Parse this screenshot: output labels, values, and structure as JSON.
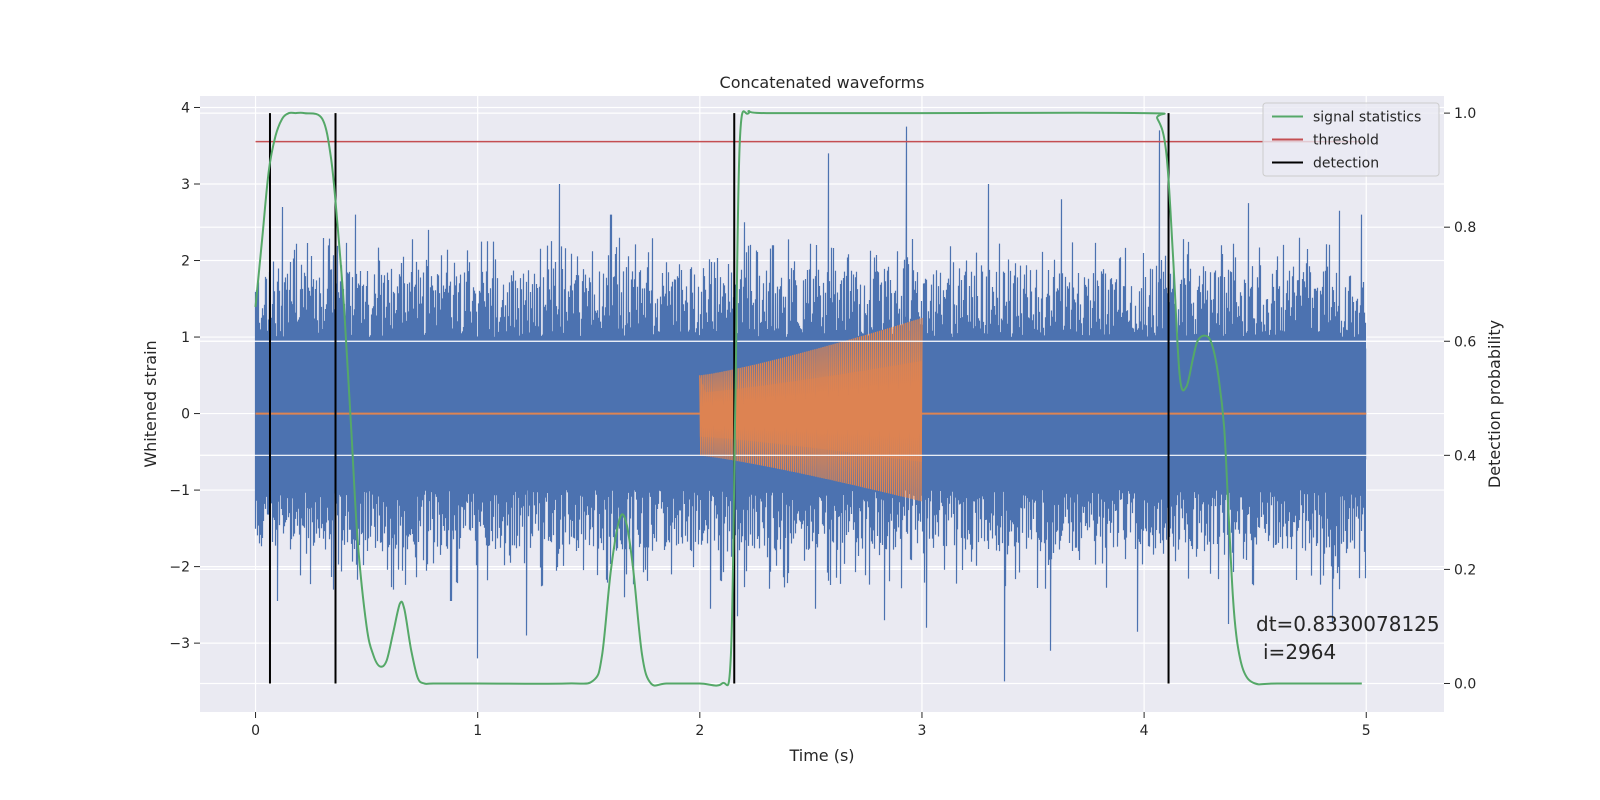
{
  "chart_data": {
    "type": "line",
    "title": "Concatenated waveforms",
    "xlabel": "Time (s)",
    "ylabel": "Whitened strain",
    "ylabel_right": "Detection probability",
    "xlim": [
      -0.25,
      5.35
    ],
    "ylim": [
      -3.9,
      4.15
    ],
    "ylim_right": [
      -0.05,
      1.03
    ],
    "x_ticks": [
      0,
      1,
      2,
      3,
      4,
      5
    ],
    "x_tick_labels": [
      "0",
      "1",
      "2",
      "3",
      "4",
      "5"
    ],
    "y_ticks": [
      -3,
      -2,
      -1,
      0,
      1,
      2,
      3,
      4
    ],
    "y_tick_labels": [
      "−3",
      "−2",
      "−1",
      "0",
      "1",
      "2",
      "3",
      "4"
    ],
    "y_right_ticks": [
      0.0,
      0.2,
      0.4,
      0.6,
      0.8,
      1.0
    ],
    "y_right_tick_labels": [
      "0.0",
      "0.2",
      "0.4",
      "0.6",
      "0.8",
      "1.0"
    ],
    "grid": true,
    "legend_position": "top-right",
    "series": [
      {
        "key": "strain",
        "color": "#4c72b0",
        "axis": "left",
        "noise_band": [
          -0.6,
          0.85
        ],
        "x_range": [
          0,
          5
        ],
        "peaks_high": [
          [
            0.12,
            2.7
          ],
          [
            0.45,
            2.6
          ],
          [
            0.78,
            2.4
          ],
          [
            1.37,
            3.0
          ],
          [
            1.6,
            2.6
          ],
          [
            2.2,
            2.5
          ],
          [
            2.33,
            2.2
          ],
          [
            2.58,
            3.4
          ],
          [
            2.93,
            3.75
          ],
          [
            3.3,
            3.0
          ],
          [
            3.63,
            2.8
          ],
          [
            4.07,
            3.7
          ],
          [
            4.47,
            2.75
          ],
          [
            4.88,
            2.65
          ],
          [
            4.98,
            2.6
          ]
        ],
        "peaks_low": [
          [
            0.1,
            -2.45
          ],
          [
            0.35,
            -2.3
          ],
          [
            0.62,
            -2.3
          ],
          [
            0.88,
            -2.45
          ],
          [
            1.0,
            -3.2
          ],
          [
            1.22,
            -2.9
          ],
          [
            1.66,
            -2.4
          ],
          [
            2.05,
            -2.55
          ],
          [
            2.17,
            -2.65
          ],
          [
            2.52,
            -2.55
          ],
          [
            2.83,
            -2.7
          ],
          [
            3.02,
            -2.8
          ],
          [
            3.37,
            -3.5
          ],
          [
            3.58,
            -3.1
          ],
          [
            3.97,
            -2.85
          ],
          [
            4.38,
            -2.75
          ],
          [
            4.85,
            -2.75
          ],
          [
            4.97,
            -2.15
          ]
        ]
      },
      {
        "key": "injection",
        "color": "#dd8452",
        "axis": "left",
        "x": [
          0,
          2.0,
          2.0,
          3.0,
          3.0,
          5.0
        ],
        "envelope_upper": [
          0,
          0.5,
          0.5,
          1.25,
          0,
          0
        ],
        "envelope_lower": [
          0,
          -0.55,
          -0.55,
          -1.15,
          0,
          0
        ],
        "chirp_start": 2.0,
        "chirp_end": 3.0
      },
      {
        "key": "signal_statistics",
        "name": "signal statistics",
        "color": "#55a868",
        "axis": "right",
        "x": [
          0.0,
          0.03,
          0.06,
          0.09,
          0.12,
          0.15,
          0.18,
          0.22,
          0.3,
          0.34,
          0.37,
          0.4,
          0.43,
          0.46,
          0.5,
          0.53,
          0.56,
          0.59,
          0.62,
          0.65,
          0.67,
          0.7,
          0.73,
          0.76,
          0.8,
          1.0,
          1.4,
          1.52,
          1.56,
          1.6,
          1.64,
          1.67,
          1.7,
          1.74,
          1.78,
          1.85,
          2.0,
          2.1,
          2.14,
          2.16,
          2.18,
          2.22,
          2.3,
          3.0,
          4.0,
          4.06,
          4.1,
          4.13,
          4.16,
          4.19,
          4.22,
          4.24,
          4.27,
          4.3,
          4.33,
          4.36,
          4.38,
          4.4,
          4.42,
          4.45,
          4.5,
          4.6,
          4.98
        ],
        "y": [
          0.66,
          0.78,
          0.9,
          0.96,
          0.99,
          1.0,
          1.0,
          1.0,
          0.99,
          0.92,
          0.8,
          0.65,
          0.45,
          0.25,
          0.1,
          0.05,
          0.03,
          0.04,
          0.09,
          0.14,
          0.13,
          0.06,
          0.01,
          0.0,
          0.0,
          0.0,
          0.0,
          0.005,
          0.05,
          0.2,
          0.29,
          0.28,
          0.2,
          0.05,
          0.0,
          0.0,
          0.0,
          0.0,
          0.05,
          0.5,
          0.95,
          1.0,
          1.0,
          1.0,
          1.0,
          0.99,
          0.93,
          0.75,
          0.54,
          0.52,
          0.57,
          0.6,
          0.61,
          0.6,
          0.55,
          0.45,
          0.3,
          0.15,
          0.07,
          0.02,
          0.0,
          0.0,
          0.0
        ]
      },
      {
        "key": "threshold",
        "name": "threshold",
        "color": "#c44e52",
        "axis": "right",
        "x": [
          0,
          5
        ],
        "y": [
          0.95,
          0.95
        ]
      },
      {
        "key": "detection",
        "name": "detection",
        "color": "#000000",
        "axis": "right",
        "x": [
          0.065,
          0.36,
          2.155,
          4.11
        ],
        "y_range": [
          0.0,
          1.0
        ]
      }
    ],
    "annotations": [
      "dt=0.8330078125",
      "i=2964"
    ]
  }
}
